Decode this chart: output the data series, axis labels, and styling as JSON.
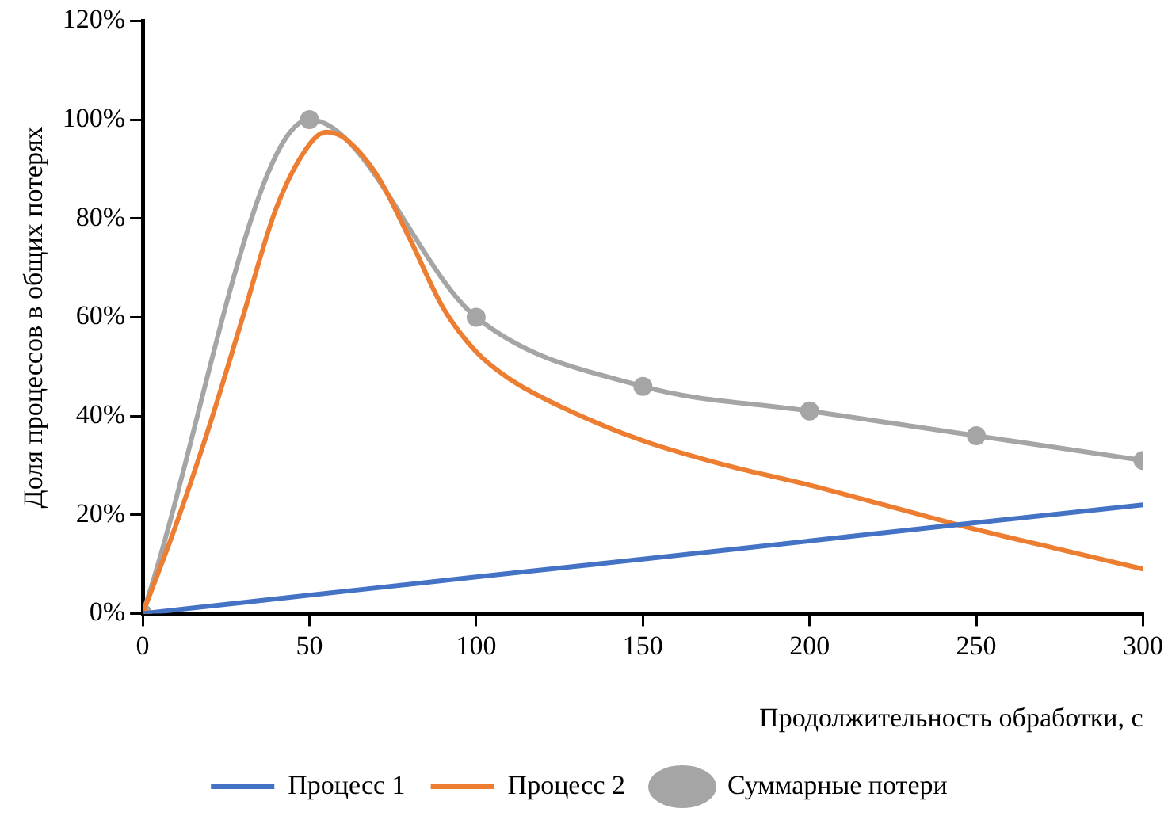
{
  "chart_data": {
    "type": "line",
    "xlabel": "Продолжительность обработки, с",
    "ylabel": "Доля процессов в общих потерях",
    "xlim": [
      0,
      300
    ],
    "xticks": [
      0,
      50,
      100,
      150,
      200,
      250,
      300
    ],
    "ylim": [
      0,
      120
    ],
    "yticks": [
      {
        "value": 0,
        "label": "0%"
      },
      {
        "value": 20,
        "label": "20%"
      },
      {
        "value": 40,
        "label": "40%"
      },
      {
        "value": 60,
        "label": "60%"
      },
      {
        "value": 80,
        "label": "80%"
      },
      {
        "value": 100,
        "label": "100%"
      },
      {
        "value": 120,
        "label": "120%"
      }
    ],
    "grid": false,
    "legend": "bottom",
    "line_style": "solid",
    "series": [
      {
        "name": "Процесс 1",
        "color": "#4472c4",
        "marker": "none",
        "x": [
          0,
          50,
          100,
          150,
          200,
          250,
          300
        ],
        "values": [
          0,
          3.7,
          7.4,
          11,
          14.7,
          18.4,
          22
        ]
      },
      {
        "name": "Процесс 2",
        "color": "#ed7d31",
        "marker": "none",
        "x": [
          0,
          10,
          20,
          30,
          40,
          50,
          55,
          60,
          70,
          80,
          90,
          100,
          110,
          125,
          150,
          175,
          200,
          225,
          250,
          275,
          300
        ],
        "values": [
          0,
          18,
          38,
          60,
          82,
          95,
          97.5,
          96.5,
          89,
          76,
          62,
          53,
          47.5,
          42,
          35,
          30,
          26,
          21.5,
          17,
          13,
          9
        ]
      },
      {
        "name": "Суммарные потери",
        "color": "#a5a5a5",
        "marker": "circle",
        "x": [
          0,
          50,
          100,
          150,
          200,
          250,
          300
        ],
        "values": [
          0,
          100,
          60,
          46,
          41,
          36,
          31
        ]
      }
    ]
  }
}
